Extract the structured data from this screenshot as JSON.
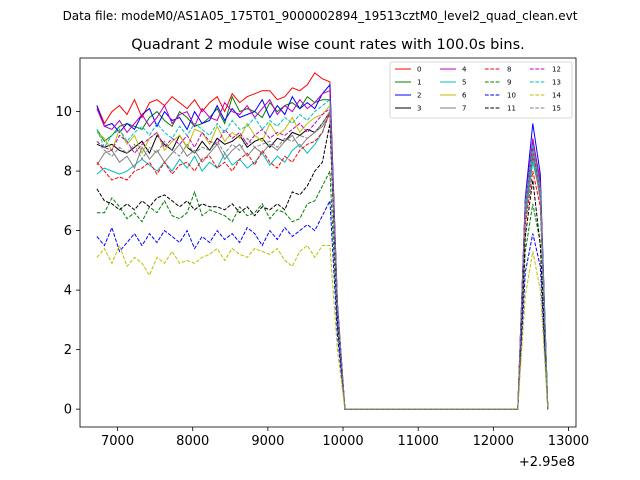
{
  "chart_data": {
    "type": "line",
    "suptitle": "Data file: modeM0/AS1A05_175T01_9000002894_19513cztM0_level2_quad_clean.evt",
    "title": "Quadrant 2 module wise count rates with 100.0s bins.",
    "xlabel": "",
    "ylabel": "",
    "x_offset_label": "+2.95e8",
    "xlim": [
      6500,
      13100
    ],
    "ylim": [
      -0.6,
      11.8
    ],
    "xticks": [
      7000,
      8000,
      9000,
      10000,
      11000,
      12000,
      13000
    ],
    "xtick_labels": [
      "7000",
      "8000",
      "9000",
      "10000",
      "11000",
      "12000",
      "13000"
    ],
    "yticks": [
      0,
      2,
      4,
      6,
      8,
      10
    ],
    "ytick_labels": [
      "0",
      "2",
      "4",
      "6",
      "8",
      "10"
    ],
    "grid": false,
    "legend_position": "upper right",
    "legend_columns": 4,
    "x": [
      6725,
      6825,
      6925,
      7025,
      7125,
      7225,
      7325,
      7425,
      7525,
      7625,
      7725,
      7825,
      7925,
      8025,
      8125,
      8225,
      8325,
      8425,
      8525,
      8625,
      8725,
      8825,
      8925,
      9025,
      9125,
      9225,
      9325,
      9425,
      9525,
      9625,
      9725,
      9825,
      9925,
      10025,
      10125,
      10225,
      10325,
      10425,
      10525,
      10625,
      10725,
      10825,
      10925,
      11025,
      11125,
      11225,
      11325,
      11425,
      11525,
      11625,
      11725,
      11825,
      11925,
      12025,
      12125,
      12225,
      12325,
      12425,
      12525,
      12625,
      12725
    ],
    "series": [
      {
        "name": "0",
        "color": "#ff0000",
        "dash": "solid",
        "values": [
          10.2,
          9.6,
          10.0,
          10.2,
          9.9,
          10.4,
          9.8,
          10.3,
          10.4,
          10.2,
          10.5,
          10.3,
          10.1,
          10.4,
          10.0,
          10.3,
          10.5,
          10.0,
          10.6,
          10.3,
          10.5,
          10.6,
          10.7,
          10.7,
          10.4,
          10.5,
          10.8,
          10.7,
          10.9,
          11.3,
          11.1,
          11.0,
          3.5,
          0.0,
          0,
          0,
          0,
          0,
          0,
          0,
          0,
          0,
          0,
          0,
          0,
          0,
          0,
          0,
          0,
          0,
          0,
          0,
          0,
          0,
          0,
          0,
          0,
          7.0,
          9.0,
          7.7,
          0
        ]
      },
      {
        "name": "1",
        "color": "#008000",
        "dash": "solid",
        "values": [
          9.4,
          9.0,
          9.2,
          9.5,
          9.6,
          9.5,
          9.4,
          9.8,
          10.0,
          9.7,
          9.5,
          10.0,
          9.8,
          9.5,
          9.6,
          9.8,
          10.1,
          9.6,
          10.5,
          10.0,
          10.1,
          10.0,
          9.8,
          10.3,
          10.0,
          10.2,
          10.3,
          10.1,
          10.5,
          10.3,
          10.4,
          10.4,
          3.4,
          0.0,
          0,
          0,
          0,
          0,
          0,
          0,
          0,
          0,
          0,
          0,
          0,
          0,
          0,
          0,
          0,
          0,
          0,
          0,
          0,
          0,
          0,
          0,
          0,
          6.8,
          8.8,
          7.4,
          0
        ]
      },
      {
        "name": "2",
        "color": "#0000ff",
        "dash": "solid",
        "values": [
          10.2,
          9.5,
          9.6,
          9.3,
          9.6,
          9.4,
          9.9,
          10.1,
          9.5,
          10.0,
          9.7,
          9.8,
          9.4,
          10.0,
          9.6,
          9.7,
          10.2,
          9.7,
          10.1,
          9.8,
          9.9,
          10.0,
          10.4,
          9.8,
          10.2,
          9.9,
          10.5,
          10.1,
          10.3,
          10.1,
          10.6,
          10.9,
          3.6,
          0.0,
          0,
          0,
          0,
          0,
          0,
          0,
          0,
          0,
          0,
          0,
          0,
          0,
          0,
          0,
          0,
          0,
          0,
          0,
          0,
          0,
          0,
          0,
          0,
          7.1,
          9.6,
          7.9,
          0
        ]
      },
      {
        "name": "3",
        "color": "#000000",
        "dash": "solid",
        "values": [
          8.9,
          8.8,
          8.9,
          8.7,
          8.6,
          8.8,
          9.0,
          8.6,
          9.2,
          8.9,
          8.7,
          9.2,
          8.8,
          8.6,
          9.0,
          8.7,
          9.1,
          8.9,
          9.0,
          9.2,
          8.8,
          9.0,
          9.1,
          8.8,
          9.1,
          9.0,
          9.3,
          9.2,
          9.4,
          9.3,
          9.6,
          10.0,
          3.3,
          0.0,
          0,
          0,
          0,
          0,
          0,
          0,
          0,
          0,
          0,
          0,
          0,
          0,
          0,
          0,
          0,
          0,
          0,
          0,
          0,
          0,
          0,
          0,
          0,
          6.5,
          8.5,
          7.3,
          0
        ]
      },
      {
        "name": "4",
        "color": "#bf00bf",
        "dash": "solid",
        "values": [
          10.1,
          9.5,
          9.4,
          9.7,
          9.3,
          9.6,
          9.9,
          9.5,
          9.8,
          10.2,
          9.6,
          9.9,
          10.0,
          9.5,
          10.1,
          9.8,
          9.7,
          10.3,
          10.0,
          9.9,
          10.2,
          9.8,
          10.1,
          10.4,
          9.9,
          10.2,
          10.0,
          10.4,
          10.1,
          10.3,
          10.6,
          10.7,
          3.5,
          0.0,
          0,
          0,
          0,
          0,
          0,
          0,
          0,
          0,
          0,
          0,
          0,
          0,
          0,
          0,
          0,
          0,
          0,
          0,
          0,
          0,
          0,
          0,
          0,
          7.0,
          9.1,
          7.6,
          0
        ]
      },
      {
        "name": "5",
        "color": "#00bfbf",
        "dash": "solid",
        "values": [
          7.9,
          8.1,
          8.0,
          7.9,
          8.0,
          8.2,
          8.4,
          8.2,
          8.0,
          8.3,
          8.0,
          8.4,
          8.1,
          8.5,
          8.0,
          8.3,
          8.1,
          8.6,
          8.2,
          8.4,
          8.1,
          8.3,
          8.6,
          8.2,
          8.5,
          8.3,
          8.7,
          8.9,
          8.6,
          8.9,
          9.3,
          10.0,
          3.2,
          0.0,
          0,
          0,
          0,
          0,
          0,
          0,
          0,
          0,
          0,
          0,
          0,
          0,
          0,
          0,
          0,
          0,
          0,
          0,
          0,
          0,
          0,
          0,
          0,
          6.4,
          8.3,
          7.2,
          0
        ]
      },
      {
        "name": "6",
        "color": "#bfbf00",
        "dash": "solid",
        "values": [
          9.3,
          9.1,
          8.7,
          9.4,
          8.9,
          9.2,
          8.6,
          9.1,
          9.3,
          8.7,
          9.0,
          9.2,
          8.8,
          9.4,
          9.3,
          8.9,
          9.5,
          9.0,
          9.3,
          9.1,
          9.6,
          9.2,
          9.0,
          9.6,
          9.2,
          9.4,
          9.8,
          9.3,
          9.6,
          9.8,
          9.9,
          10.2,
          3.4,
          0.0,
          0,
          0,
          0,
          0,
          0,
          0,
          0,
          0,
          0,
          0,
          0,
          0,
          0,
          0,
          0,
          0,
          0,
          0,
          0,
          0,
          0,
          0,
          0,
          6.7,
          8.7,
          7.3,
          0
        ]
      },
      {
        "name": "7",
        "color": "#808080",
        "dash": "solid",
        "values": [
          8.2,
          8.6,
          8.7,
          8.3,
          8.5,
          8.1,
          8.8,
          8.4,
          8.7,
          8.3,
          8.6,
          8.9,
          8.5,
          8.7,
          8.3,
          8.6,
          8.9,
          8.4,
          8.7,
          8.9,
          8.5,
          8.8,
          8.6,
          8.9,
          8.7,
          9.0,
          9.2,
          8.8,
          9.1,
          9.3,
          9.5,
          9.9,
          3.3,
          0.0,
          0,
          0,
          0,
          0,
          0,
          0,
          0,
          0,
          0,
          0,
          0,
          0,
          0,
          0,
          0,
          0,
          0,
          0,
          0,
          0,
          0,
          0,
          0,
          6.6,
          8.6,
          7.0,
          0
        ]
      },
      {
        "name": "8",
        "color": "#ff0000",
        "dash": "dashed",
        "values": [
          8.3,
          8.0,
          7.7,
          7.8,
          7.7,
          8.0,
          8.1,
          8.3,
          7.9,
          8.3,
          7.9,
          8.2,
          8.3,
          8.0,
          8.4,
          8.5,
          8.1,
          8.3,
          8.0,
          8.4,
          8.6,
          8.2,
          8.7,
          8.3,
          8.1,
          8.5,
          8.3,
          8.7,
          8.9,
          9.0,
          9.3,
          10.0,
          3.2,
          0.0,
          0,
          0,
          0,
          0,
          0,
          0,
          0,
          0,
          0,
          0,
          0,
          0,
          0,
          0,
          0,
          0,
          0,
          0,
          0,
          0,
          0,
          0,
          0,
          6.2,
          8.0,
          6.8,
          0
        ]
      },
      {
        "name": "9",
        "color": "#008000",
        "dash": "dashed",
        "values": [
          6.6,
          6.6,
          7.1,
          6.8,
          6.4,
          6.6,
          6.3,
          6.8,
          6.6,
          7.0,
          6.5,
          6.4,
          6.6,
          7.3,
          6.5,
          6.7,
          6.6,
          6.5,
          6.3,
          6.8,
          6.5,
          6.6,
          6.9,
          6.4,
          6.7,
          6.6,
          6.3,
          6.4,
          6.9,
          7.0,
          7.5,
          8.0,
          2.8,
          0.0,
          0,
          0,
          0,
          0,
          0,
          0,
          0,
          0,
          0,
          0,
          0,
          0,
          0,
          0,
          0,
          0,
          0,
          0,
          0,
          0,
          0,
          0,
          0,
          5.3,
          6.9,
          5.6,
          0
        ]
      },
      {
        "name": "10",
        "color": "#0000ff",
        "dash": "dashed",
        "values": [
          5.8,
          5.5,
          6.1,
          5.3,
          5.6,
          5.9,
          5.5,
          5.9,
          5.6,
          6.0,
          5.8,
          5.6,
          6.0,
          5.4,
          5.8,
          5.6,
          6.0,
          5.7,
          5.9,
          5.6,
          6.1,
          5.9,
          5.5,
          6.0,
          5.7,
          6.1,
          5.8,
          6.0,
          6.2,
          6.0,
          6.5,
          7.0,
          2.5,
          0.0,
          0,
          0,
          0,
          0,
          0,
          0,
          0,
          0,
          0,
          0,
          0,
          0,
          0,
          0,
          0,
          0,
          0,
          0,
          0,
          0,
          0,
          0,
          0,
          4.6,
          5.9,
          4.8,
          0
        ]
      },
      {
        "name": "11",
        "color": "#000000",
        "dash": "dashed",
        "values": [
          7.4,
          7.0,
          6.9,
          6.7,
          6.9,
          6.7,
          7.0,
          6.8,
          7.1,
          7.2,
          7.0,
          6.8,
          7.0,
          6.7,
          6.9,
          6.8,
          6.8,
          6.7,
          6.9,
          6.6,
          6.8,
          6.5,
          6.8,
          6.7,
          6.9,
          6.7,
          7.3,
          7.2,
          7.5,
          8.0,
          8.3,
          9.6,
          3.1,
          0.0,
          0,
          0,
          0,
          0,
          0,
          0,
          0,
          0,
          0,
          0,
          0,
          0,
          0,
          0,
          0,
          0,
          0,
          0,
          0,
          0,
          0,
          0,
          0,
          5.8,
          7.7,
          5.5,
          0
        ]
      },
      {
        "name": "12",
        "color": "#bf00bf",
        "dash": "dashed",
        "values": [
          9.0,
          8.8,
          8.7,
          9.2,
          9.0,
          8.6,
          8.9,
          9.1,
          9.3,
          8.8,
          9.1,
          8.9,
          9.2,
          8.8,
          9.3,
          9.0,
          8.9,
          9.4,
          9.1,
          9.3,
          8.9,
          9.2,
          9.4,
          9.1,
          9.3,
          9.2,
          9.4,
          9.6,
          9.3,
          9.6,
          9.9,
          10.1,
          3.4,
          0.0,
          0,
          0,
          0,
          0,
          0,
          0,
          0,
          0,
          0,
          0,
          0,
          0,
          0,
          0,
          0,
          0,
          0,
          0,
          0,
          0,
          0,
          0,
          0,
          6.8,
          8.8,
          7.2,
          0
        ]
      },
      {
        "name": "13",
        "color": "#00bfbf",
        "dash": "dashed",
        "values": [
          9.4,
          8.8,
          9.2,
          9.4,
          9.0,
          9.3,
          9.5,
          9.2,
          9.6,
          9.3,
          9.1,
          9.5,
          9.2,
          9.6,
          9.4,
          9.2,
          9.6,
          9.3,
          9.7,
          9.4,
          9.5,
          9.8,
          9.4,
          9.7,
          9.5,
          9.8,
          9.6,
          9.9,
          9.7,
          10.0,
          10.2,
          10.4,
          3.5,
          0.0,
          0,
          0,
          0,
          0,
          0,
          0,
          0,
          0,
          0,
          0,
          0,
          0,
          0,
          0,
          0,
          0,
          0,
          0,
          0,
          0,
          0,
          0,
          0,
          6.9,
          8.9,
          7.4,
          0
        ]
      },
      {
        "name": "14",
        "color": "#bfbf00",
        "dash": "dashed",
        "values": [
          5.1,
          5.4,
          4.9,
          5.5,
          4.8,
          5.1,
          4.9,
          4.5,
          5.1,
          4.9,
          5.3,
          4.9,
          5.0,
          4.9,
          5.1,
          5.2,
          5.4,
          5.0,
          5.4,
          5.2,
          5.1,
          5.4,
          5.3,
          5.2,
          5.4,
          5.0,
          4.8,
          5.3,
          5.5,
          5.1,
          5.5,
          5.5,
          2.0,
          0.0,
          0,
          0,
          0,
          0,
          0,
          0,
          0,
          0,
          0,
          0,
          0,
          0,
          0,
          0,
          0,
          0,
          0,
          0,
          0,
          0,
          0,
          0,
          0,
          3.8,
          5.3,
          4.0,
          0
        ]
      },
      {
        "name": "15",
        "color": "#808080",
        "dash": "dashed",
        "values": [
          9.0,
          8.7,
          8.5,
          8.8,
          8.6,
          8.9,
          8.4,
          8.8,
          8.6,
          9.0,
          8.7,
          8.5,
          8.9,
          8.6,
          8.8,
          8.7,
          9.0,
          8.6,
          8.9,
          8.7,
          9.1,
          8.8,
          8.9,
          9.0,
          8.8,
          9.1,
          9.0,
          9.2,
          9.1,
          9.3,
          9.6,
          10.0,
          3.3,
          0.0,
          0,
          0,
          0,
          0,
          0,
          0,
          0,
          0,
          0,
          0,
          0,
          0,
          0,
          0,
          0,
          0,
          0,
          0,
          0,
          0,
          0,
          0,
          0,
          6.6,
          8.6,
          7.1,
          0
        ]
      }
    ]
  }
}
